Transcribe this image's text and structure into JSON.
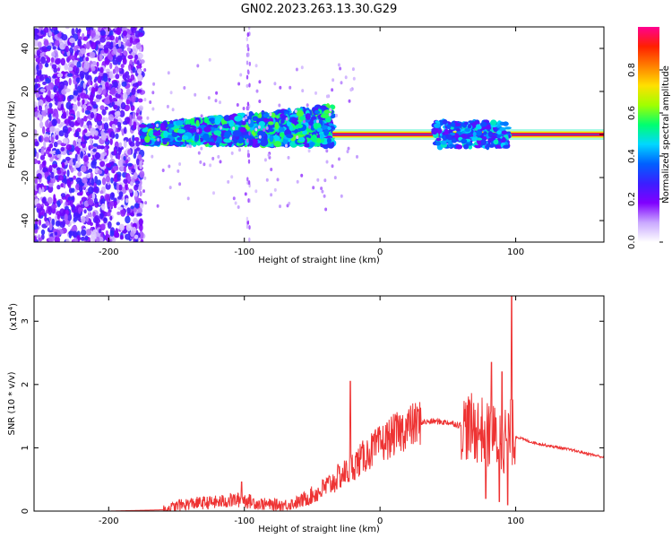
{
  "figure_title": "GN02.2023.263.13.30.G29",
  "chart_data": [
    {
      "type": "heatmap",
      "title": "",
      "xlabel": "Height of straight line (km)",
      "ylabel": "Frequency (Hz)",
      "xlim": [
        -255,
        165
      ],
      "ylim": [
        -50,
        50
      ],
      "x_ticks": [
        -200,
        -100,
        0,
        100
      ],
      "y_ticks": [
        -40,
        -20,
        0,
        20,
        40
      ],
      "colorbar": {
        "label": "Normalized spectral amplitude",
        "range": [
          0,
          1
        ],
        "ticks": [
          "0.0",
          "0.2",
          "0.4",
          "0.6",
          "0.8"
        ],
        "colors": [
          "#ffffff",
          "#c9a8ff",
          "#8000ff",
          "#3b1fff",
          "#0060ff",
          "#00d8ff",
          "#00ff70",
          "#a0ff00",
          "#ffe000",
          "#ff8000",
          "#ff2000",
          "#ff0090"
        ]
      },
      "regions": [
        {
          "description": "noise",
          "x_range": [
            -255,
            -175
          ],
          "freq_range": [
            -50,
            50
          ],
          "amplitude": [
            0.05,
            0.3
          ]
        },
        {
          "description": "broad signal band",
          "x_range": [
            -175,
            -35
          ],
          "freq_range": [
            -8,
            10
          ],
          "amplitude": [
            0.2,
            0.6
          ]
        },
        {
          "description": "narrow carrier line",
          "x_range": [
            -35,
            165
          ],
          "freq_range": [
            -1,
            1
          ],
          "amplitude": [
            0.85,
            1.0
          ]
        },
        {
          "description": "scintillation patch",
          "x_range": [
            40,
            95
          ],
          "freq_range": [
            -6,
            6
          ],
          "amplitude": [
            0.2,
            0.5
          ]
        }
      ],
      "vertical_streak_x": -97
    },
    {
      "type": "line",
      "title": "",
      "xlabel": "Height of straight line (km)",
      "ylabel": "SNR (10 * v/v)",
      "y_scale_label": "(x10",
      "y_scale_exponent": "4",
      "xlim": [
        -255,
        165
      ],
      "ylim": [
        0,
        3.4
      ],
      "x_ticks": [
        -200,
        -100,
        0,
        100
      ],
      "y_ticks": [
        0,
        1,
        2,
        3
      ],
      "line_color": "#ee3333",
      "envelope": {
        "x": [
          -255,
          -200,
          -160,
          -150,
          -140,
          -120,
          -110,
          -100,
          -90,
          -80,
          -70,
          -60,
          -50,
          -45,
          -40,
          -35,
          -30,
          -22,
          -20,
          -15,
          -10,
          0,
          10,
          20,
          30,
          40,
          50,
          55,
          60,
          65,
          70,
          75,
          80,
          85,
          90,
          95,
          97,
          100,
          110,
          120,
          140,
          165
        ],
        "y": [
          0.0,
          0.0,
          0.02,
          0.08,
          0.12,
          0.14,
          0.17,
          0.18,
          0.12,
          0.1,
          0.1,
          0.14,
          0.25,
          0.3,
          0.38,
          0.45,
          0.55,
          0.65,
          0.72,
          0.8,
          0.9,
          1.05,
          1.2,
          1.32,
          1.4,
          1.42,
          1.4,
          1.38,
          1.35,
          1.33,
          1.3,
          1.28,
          1.2,
          1.15,
          1.1,
          1.2,
          1.25,
          1.18,
          1.1,
          1.05,
          0.97,
          0.85
        ]
      },
      "spikes": [
        {
          "x": -148,
          "y": 0.18
        },
        {
          "x": -102,
          "y": 0.46
        },
        {
          "x": -22,
          "y": 2.05
        },
        {
          "x": 82,
          "y": 2.35
        },
        {
          "x": 90,
          "y": 2.2
        },
        {
          "x": 97,
          "y": 3.42
        }
      ],
      "dips": [
        {
          "x": 78,
          "y": 0.2
        },
        {
          "x": 88,
          "y": 0.15
        },
        {
          "x": 94,
          "y": 0.1
        }
      ]
    }
  ]
}
